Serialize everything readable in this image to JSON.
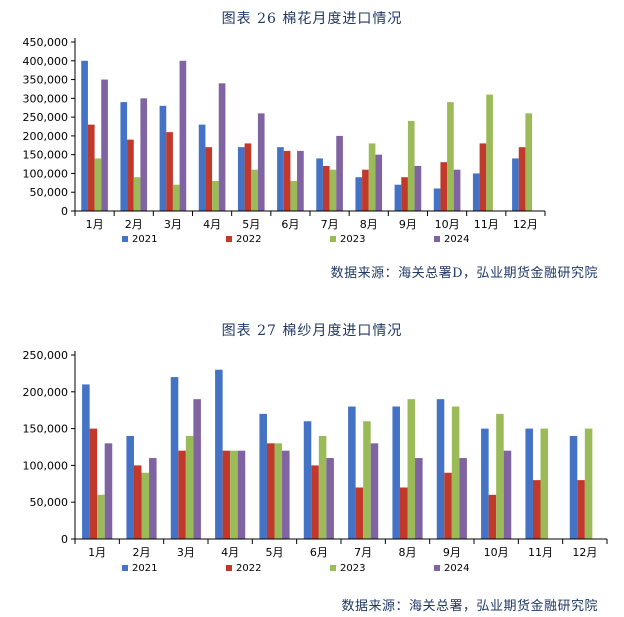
{
  "colors": {
    "2021": "#4472c4",
    "2022": "#c0392b",
    "2023": "#9bbb59",
    "2024": "#8064a2"
  },
  "charts": [
    {
      "title": "图表 26   棉花月度进口情况",
      "source": "数据来源：海关总署D，弘业期货金融研究院"
    },
    {
      "title": "图表 27   棉纱月度进口情况",
      "source": "数据来源：海关总署，弘业期货金融研究院"
    }
  ],
  "chart_data": [
    {
      "type": "bar",
      "title": "图表 26 棉花月度进口情况",
      "categories": [
        "1月",
        "2月",
        "3月",
        "4月",
        "5月",
        "6月",
        "7月",
        "8月",
        "9月",
        "10月",
        "11月",
        "12月"
      ],
      "ylim": [
        0,
        450000
      ],
      "yticks": [
        0,
        50000,
        100000,
        150000,
        200000,
        250000,
        300000,
        350000,
        400000,
        450000
      ],
      "ytick_labels": [
        "0",
        "50,000",
        "100,000",
        "150,000",
        "200,000",
        "250,000",
        "300,000",
        "350,000",
        "400,000",
        "450,000"
      ],
      "series": [
        {
          "name": "2021",
          "values": [
            400000,
            290000,
            280000,
            230000,
            170000,
            170000,
            140000,
            90000,
            70000,
            60000,
            100000,
            140000
          ]
        },
        {
          "name": "2022",
          "values": [
            230000,
            190000,
            210000,
            170000,
            180000,
            160000,
            120000,
            110000,
            90000,
            130000,
            180000,
            170000
          ]
        },
        {
          "name": "2023",
          "values": [
            140000,
            90000,
            70000,
            80000,
            110000,
            80000,
            110000,
            180000,
            240000,
            290000,
            310000,
            260000
          ]
        },
        {
          "name": "2024",
          "values": [
            350000,
            300000,
            400000,
            340000,
            260000,
            160000,
            200000,
            150000,
            120000,
            110000,
            null,
            null
          ]
        }
      ]
    },
    {
      "type": "bar",
      "title": "图表 27 棉纱月度进口情况",
      "categories": [
        "1月",
        "2月",
        "3月",
        "4月",
        "5月",
        "6月",
        "7月",
        "8月",
        "9月",
        "10月",
        "11月",
        "12月"
      ],
      "ylim": [
        0,
        250000
      ],
      "yticks": [
        0,
        50000,
        100000,
        150000,
        200000,
        250000
      ],
      "ytick_labels": [
        "0",
        "50,000",
        "100,000",
        "150,000",
        "200,000",
        "250,000"
      ],
      "series": [
        {
          "name": "2021",
          "values": [
            210000,
            140000,
            220000,
            230000,
            170000,
            160000,
            180000,
            180000,
            190000,
            150000,
            150000,
            140000
          ]
        },
        {
          "name": "2022",
          "values": [
            150000,
            100000,
            120000,
            120000,
            130000,
            100000,
            70000,
            70000,
            90000,
            60000,
            80000,
            80000
          ]
        },
        {
          "name": "2023",
          "values": [
            60000,
            90000,
            140000,
            120000,
            130000,
            140000,
            160000,
            190000,
            180000,
            170000,
            150000,
            150000
          ]
        },
        {
          "name": "2024",
          "values": [
            130000,
            110000,
            190000,
            120000,
            120000,
            110000,
            130000,
            110000,
            110000,
            120000,
            null,
            null
          ]
        }
      ]
    }
  ]
}
